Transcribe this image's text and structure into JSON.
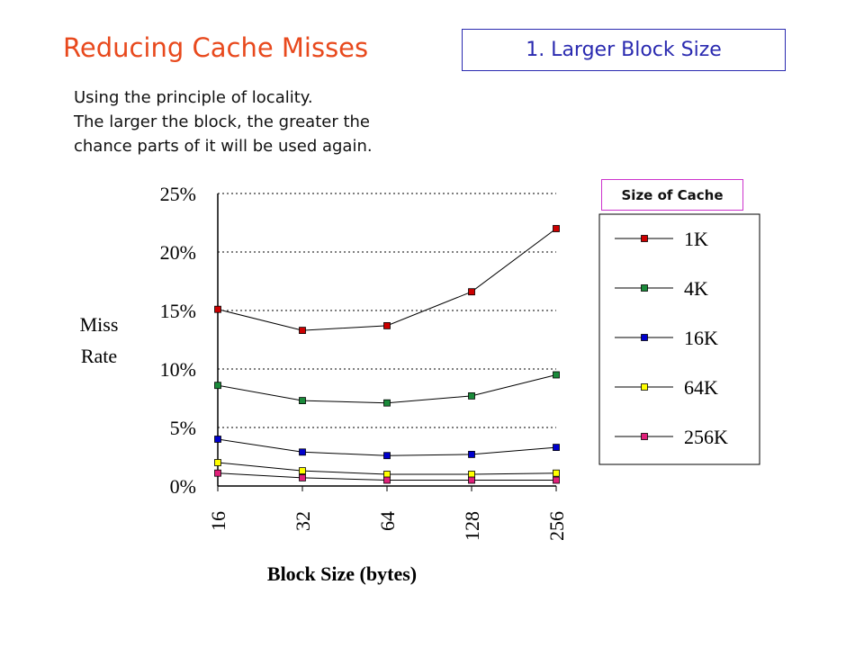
{
  "slide": {
    "title": "Reducing Cache Misses",
    "subtitle_box": "1. Larger Block Size",
    "intro_lines": [
      "Using the principle of locality.",
      "The larger the block, the greater the",
      "chance parts of it will be used again."
    ],
    "legend_title": "Size of Cache"
  },
  "chart_data": {
    "type": "line",
    "title": "",
    "xlabel": "Block Size (bytes)",
    "ylabel_lines": [
      "Miss",
      "Rate"
    ],
    "categories": [
      "16",
      "32",
      "64",
      "128",
      "256"
    ],
    "yticks": [
      "0%",
      "5%",
      "10%",
      "15%",
      "20%",
      "25%"
    ],
    "ylim": [
      0,
      25
    ],
    "grid": "horizontal-dotted",
    "legend_placement": "right",
    "series": [
      {
        "name": "1K",
        "color": "#cc0000",
        "values": [
          15.1,
          13.3,
          13.7,
          16.6,
          22.0
        ]
      },
      {
        "name": "4K",
        "color": "#1a8a3a",
        "values": [
          8.6,
          7.3,
          7.1,
          7.7,
          9.5
        ]
      },
      {
        "name": "16K",
        "color": "#0000cc",
        "values": [
          4.0,
          2.9,
          2.6,
          2.7,
          3.3
        ]
      },
      {
        "name": "64K",
        "color": "#ffff00",
        "values": [
          2.0,
          1.3,
          1.0,
          1.0,
          1.1
        ]
      },
      {
        "name": "256K",
        "color": "#e0207a",
        "values": [
          1.1,
          0.7,
          0.5,
          0.5,
          0.5
        ]
      }
    ]
  }
}
